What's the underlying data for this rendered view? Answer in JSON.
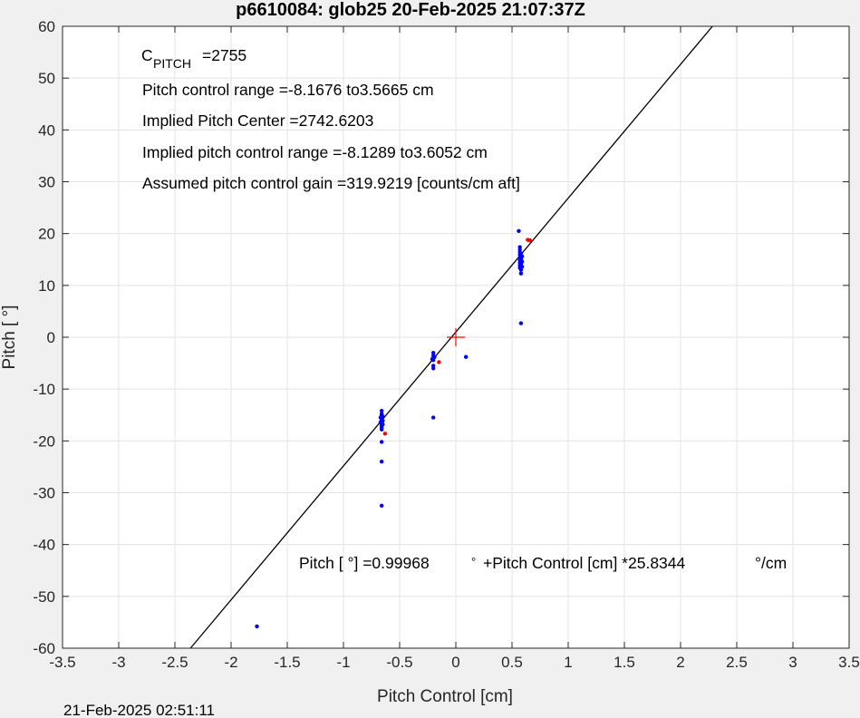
{
  "chart_data": {
    "type": "scatter",
    "title": "p6610084: glob25 20-Feb-2025 21:07:37Z",
    "xlabel": "Pitch Control [cm]",
    "ylabel": "Pitch [  °]",
    "xlim": [
      -3.5,
      3.5
    ],
    "ylim": [
      -60,
      60
    ],
    "x_ticks": [
      -3.5,
      -3,
      -2.5,
      -2,
      -1.5,
      -1,
      -0.5,
      0,
      0.5,
      1,
      1.5,
      2,
      2.5,
      3,
      3.5
    ],
    "y_ticks": [
      -60,
      -50,
      -40,
      -30,
      -20,
      -10,
      0,
      10,
      20,
      30,
      40,
      50,
      60
    ],
    "x_tick_labels": [
      "-3.5",
      "-3",
      "-2.5",
      "-2",
      "-1.5",
      "-1",
      "-0.5",
      "0",
      "0.5",
      "1",
      "1.5",
      "2",
      "2.5",
      "3",
      "3.5"
    ],
    "y_tick_labels": [
      "-60",
      "-50",
      "-40",
      "-30",
      "-20",
      "-10",
      "0",
      "10",
      "20",
      "30",
      "40",
      "50",
      "60"
    ],
    "grid": true,
    "fit_line": {
      "slope": 25.8344,
      "intercept": 0.99968,
      "color": "#000000"
    },
    "center_marker": {
      "x": 0,
      "y": 0,
      "color": "#ff0000"
    },
    "series": [
      {
        "color": "#0000ff",
        "points": [
          [
            -0.66,
            -14.2
          ],
          [
            -0.66,
            -14.8
          ],
          [
            -0.66,
            -15.1
          ],
          [
            -0.66,
            -15.4
          ],
          [
            -0.66,
            -15.7
          ],
          [
            -0.66,
            -16.0
          ],
          [
            -0.66,
            -16.3
          ],
          [
            -0.66,
            -16.6
          ],
          [
            -0.66,
            -16.9
          ],
          [
            -0.66,
            -17.2
          ],
          [
            -0.66,
            -17.5
          ],
          [
            -0.66,
            -17.8
          ],
          [
            -0.65,
            -15.3
          ],
          [
            -0.65,
            -16.1
          ],
          [
            -0.65,
            -16.8
          ],
          [
            -0.67,
            -15.5
          ],
          [
            -0.67,
            -16.4
          ],
          [
            -0.66,
            -20.2
          ],
          [
            -0.66,
            -24.0
          ],
          [
            -0.66,
            -32.5
          ],
          [
            -0.2,
            -3.0
          ],
          [
            -0.2,
            -3.5
          ],
          [
            -0.2,
            -4.0
          ],
          [
            -0.2,
            -4.4
          ],
          [
            -0.2,
            -5.5
          ],
          [
            -0.2,
            -6.0
          ],
          [
            -0.19,
            -3.8
          ],
          [
            -0.21,
            -4.2
          ],
          [
            -0.2,
            -15.5
          ],
          [
            0.09,
            -3.8
          ],
          [
            0.56,
            20.5
          ],
          [
            0.57,
            17.4
          ],
          [
            0.57,
            16.9
          ],
          [
            0.57,
            16.4
          ],
          [
            0.57,
            15.9
          ],
          [
            0.57,
            15.4
          ],
          [
            0.57,
            14.9
          ],
          [
            0.57,
            14.4
          ],
          [
            0.57,
            13.9
          ],
          [
            0.57,
            13.4
          ],
          [
            0.58,
            16.2
          ],
          [
            0.58,
            15.1
          ],
          [
            0.58,
            14.2
          ],
          [
            0.58,
            13.0
          ],
          [
            0.58,
            12.3
          ],
          [
            0.59,
            15.6
          ],
          [
            0.59,
            14.6
          ],
          [
            0.59,
            13.6
          ],
          [
            0.58,
            2.7
          ],
          [
            -1.77,
            -55.8
          ]
        ]
      },
      {
        "color": "#ff0000",
        "points": [
          [
            -0.63,
            -18.6
          ],
          [
            -0.15,
            -4.8
          ],
          [
            0.64,
            18.8
          ],
          [
            0.66,
            18.7
          ]
        ]
      }
    ],
    "annotations": {
      "c_pitch_main": "C",
      "c_pitch_sub": "PITCH",
      "c_pitch_value": "=2755",
      "line2": "Pitch control range =-8.1676 to3.5665 cm",
      "line3": "Implied Pitch Center =2742.6203",
      "line4": "Implied pitch control range =-8.1289 to3.6052 cm",
      "line5": "Assumed pitch control gain =319.9219 [counts/cm aft]",
      "eq_part1": "Pitch [  °] =0.99968",
      "eq_part2": "°",
      "eq_part3": "+Pitch Control [cm] *25.8344",
      "eq_part4": "°/cm"
    }
  },
  "footer": {
    "timestamp": "21-Feb-2025 02:51:11"
  }
}
